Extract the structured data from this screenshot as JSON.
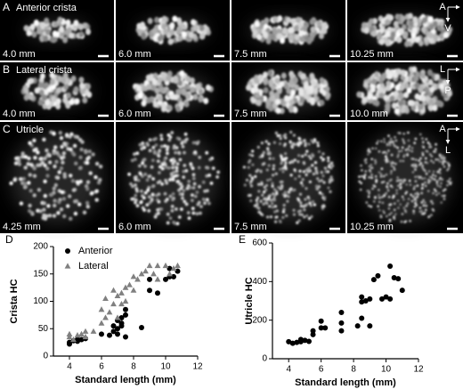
{
  "panels": [
    {
      "letter": "A",
      "title": "Anterior crista",
      "images": [
        "4.0 mm",
        "6.0 mm",
        "7.5 mm",
        "10.25 mm"
      ],
      "orientation": [
        "A",
        "V"
      ]
    },
    {
      "letter": "B",
      "title": "Lateral crista",
      "images": [
        "4.0 mm",
        "6.0 mm",
        "7.5 mm",
        "10.0 mm"
      ],
      "orientation": [
        "L",
        "P"
      ]
    },
    {
      "letter": "C",
      "title": "Utricle",
      "images": [
        "4.25 mm",
        "6.0 mm",
        "7.5 mm",
        "10.25 mm"
      ],
      "orientation": [
        "A",
        "L"
      ]
    }
  ],
  "chart_data": [
    {
      "type": "scatter",
      "panel_label": "D",
      "x_label": "Standard length (mm)",
      "y_label": "Crista HC",
      "xlim": [
        3,
        12
      ],
      "ylim": [
        0,
        200
      ],
      "xticks": [
        4,
        6,
        8,
        10,
        12
      ],
      "yticks": [
        0,
        50,
        100,
        150,
        200
      ],
      "legend": "upper left",
      "series": [
        {
          "name": "Anterior",
          "color": "#000000",
          "marker": "circle",
          "x": [
            4.0,
            4.0,
            4.25,
            4.5,
            4.5,
            4.75,
            5.0,
            6.0,
            6.5,
            6.75,
            6.75,
            7.0,
            7.0,
            7.0,
            7.25,
            7.25,
            7.25,
            7.5,
            7.5,
            7.5,
            8.5,
            9.0,
            9.0,
            9.5,
            10.0,
            10.25,
            10.25,
            10.5,
            10.75
          ],
          "values": [
            22,
            25,
            28,
            27,
            30,
            30,
            32,
            40,
            38,
            45,
            55,
            50,
            65,
            40,
            60,
            70,
            55,
            75,
            85,
            35,
            52,
            120,
            140,
            115,
            140,
            160,
            145,
            145,
            155
          ]
        },
        {
          "name": "Lateral",
          "color": "#808080",
          "marker": "triangle",
          "x": [
            4.0,
            4.0,
            4.25,
            4.5,
            4.75,
            5.0,
            5.0,
            5.5,
            6.0,
            6.0,
            6.25,
            6.25,
            6.5,
            6.75,
            6.75,
            7.0,
            7.0,
            7.25,
            7.25,
            7.5,
            7.5,
            7.75,
            8.0,
            8.0,
            8.25,
            8.5,
            8.75,
            9.0,
            9.25,
            9.5,
            9.5,
            10.0,
            10.25,
            10.5,
            10.75
          ],
          "values": [
            35,
            40,
            30,
            38,
            40,
            45,
            35,
            45,
            60,
            85,
            70,
            105,
            80,
            95,
            120,
            110,
            70,
            115,
            95,
            100,
            125,
            130,
            120,
            145,
            140,
            150,
            155,
            165,
            150,
            165,
            140,
            165,
            150,
            160,
            165
          ]
        }
      ]
    },
    {
      "type": "scatter",
      "panel_label": "E",
      "x_label": "Standard length (mm)",
      "y_label": "Utricle HC",
      "xlim": [
        3,
        12
      ],
      "ylim": [
        0,
        600
      ],
      "xticks": [
        4,
        6,
        8,
        10,
        12
      ],
      "yticks": [
        0,
        200,
        400,
        600
      ],
      "series": [
        {
          "color": "#000000",
          "marker": "circle",
          "x": [
            4.0,
            4.25,
            4.5,
            4.75,
            4.75,
            5.0,
            5.25,
            5.5,
            5.5,
            6.0,
            6.0,
            6.25,
            7.25,
            7.25,
            7.25,
            8.25,
            8.5,
            8.5,
            8.75,
            9.0,
            9.0,
            9.25,
            9.5,
            9.75,
            10.0,
            10.25,
            10.25,
            10.5,
            10.75,
            11.0,
            8.5
          ],
          "values": [
            88,
            80,
            85,
            100,
            88,
            95,
            90,
            125,
            145,
            160,
            195,
            160,
            240,
            185,
            145,
            170,
            210,
            320,
            300,
            170,
            310,
            410,
            430,
            310,
            320,
            480,
            310,
            420,
            415,
            355,
            295
          ]
        }
      ]
    }
  ]
}
